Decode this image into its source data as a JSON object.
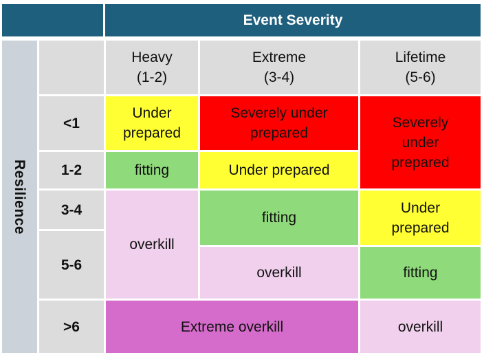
{
  "header": {
    "title": "Event Severity"
  },
  "axis": {
    "resilience_label": "Resilience"
  },
  "columns": [
    {
      "label": "Heavy",
      "range": "(1-2)"
    },
    {
      "label": "Extreme",
      "range": "(3-4)"
    },
    {
      "label": "Lifetime",
      "range": "(5-6)"
    }
  ],
  "rows": [
    "<1",
    "1-2",
    "3-4",
    "5-6",
    ">6"
  ],
  "cells": {
    "heavy_lt1": "Under\nprepared",
    "extreme_lt1": "Severely under\nprepared",
    "lifetime_lt2": "Severely\nunder\nprepared",
    "heavy_1_2": "fitting",
    "extreme_1_2": "Under prepared",
    "heavy_3_6": "overkill",
    "extreme_3_4": "fitting",
    "lifetime_3_4": "Under\nprepared",
    "extreme_5_6": "overkill",
    "lifetime_5_6": "fitting",
    "heavy_extreme_gt6": "Extreme overkill",
    "lifetime_gt6": "overkill"
  },
  "colors": {
    "header": "#1e5f7d",
    "yellow": "#ffff33",
    "red": "#ff0000",
    "green": "#8fda7a",
    "pink": "#f0d0ec",
    "magenta": "#d56ccb",
    "gray": "#dcdcdc"
  }
}
